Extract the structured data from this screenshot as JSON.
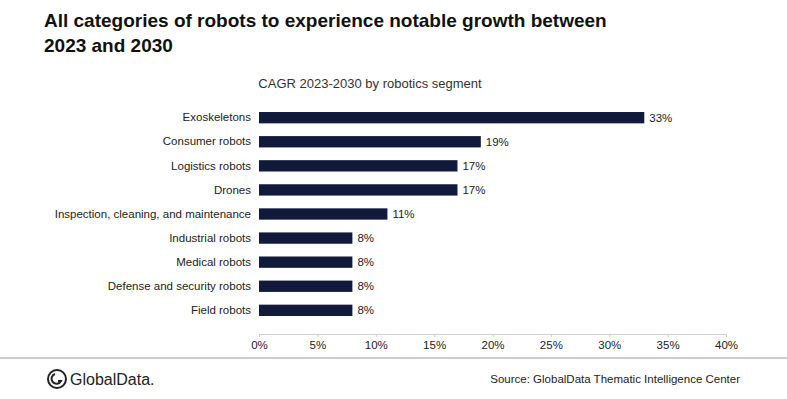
{
  "chart_data": {
    "type": "bar",
    "orientation": "horizontal",
    "title": "All categories of robots to experience notable growth between\n2023 and 2030",
    "subtitle": "CAGR 2023-2030 by robotics segment",
    "categories": [
      "Exoskeletons",
      "Consumer robots",
      "Logistics robots",
      "Drones",
      "Inspection, cleaning, and maintenance",
      "Industrial robots",
      "Medical robots",
      "Defense and security robots",
      "Field robots"
    ],
    "values": [
      33,
      19,
      17,
      17,
      11,
      8,
      8,
      8,
      8
    ],
    "value_labels": [
      "33%",
      "19%",
      "17%",
      "17%",
      "11%",
      "8%",
      "8%",
      "8%",
      "8%"
    ],
    "data_labels": true,
    "color": "#111a3a",
    "xlim": [
      0,
      40
    ],
    "xticks": [
      {
        "value": 0,
        "label": "0%"
      },
      {
        "value": 5,
        "label": "5%"
      },
      {
        "value": 10,
        "label": "10%"
      },
      {
        "value": 15,
        "label": "15%"
      },
      {
        "value": 20,
        "label": "20%"
      },
      {
        "value": 25,
        "label": "25%"
      },
      {
        "value": 30,
        "label": "30%"
      },
      {
        "value": 35,
        "label": "35%"
      },
      {
        "value": 40,
        "label": "40%"
      }
    ],
    "grid": false,
    "logo": "GlobalData.",
    "source": "Source: GlobalData Thematic Intelligence Center"
  }
}
